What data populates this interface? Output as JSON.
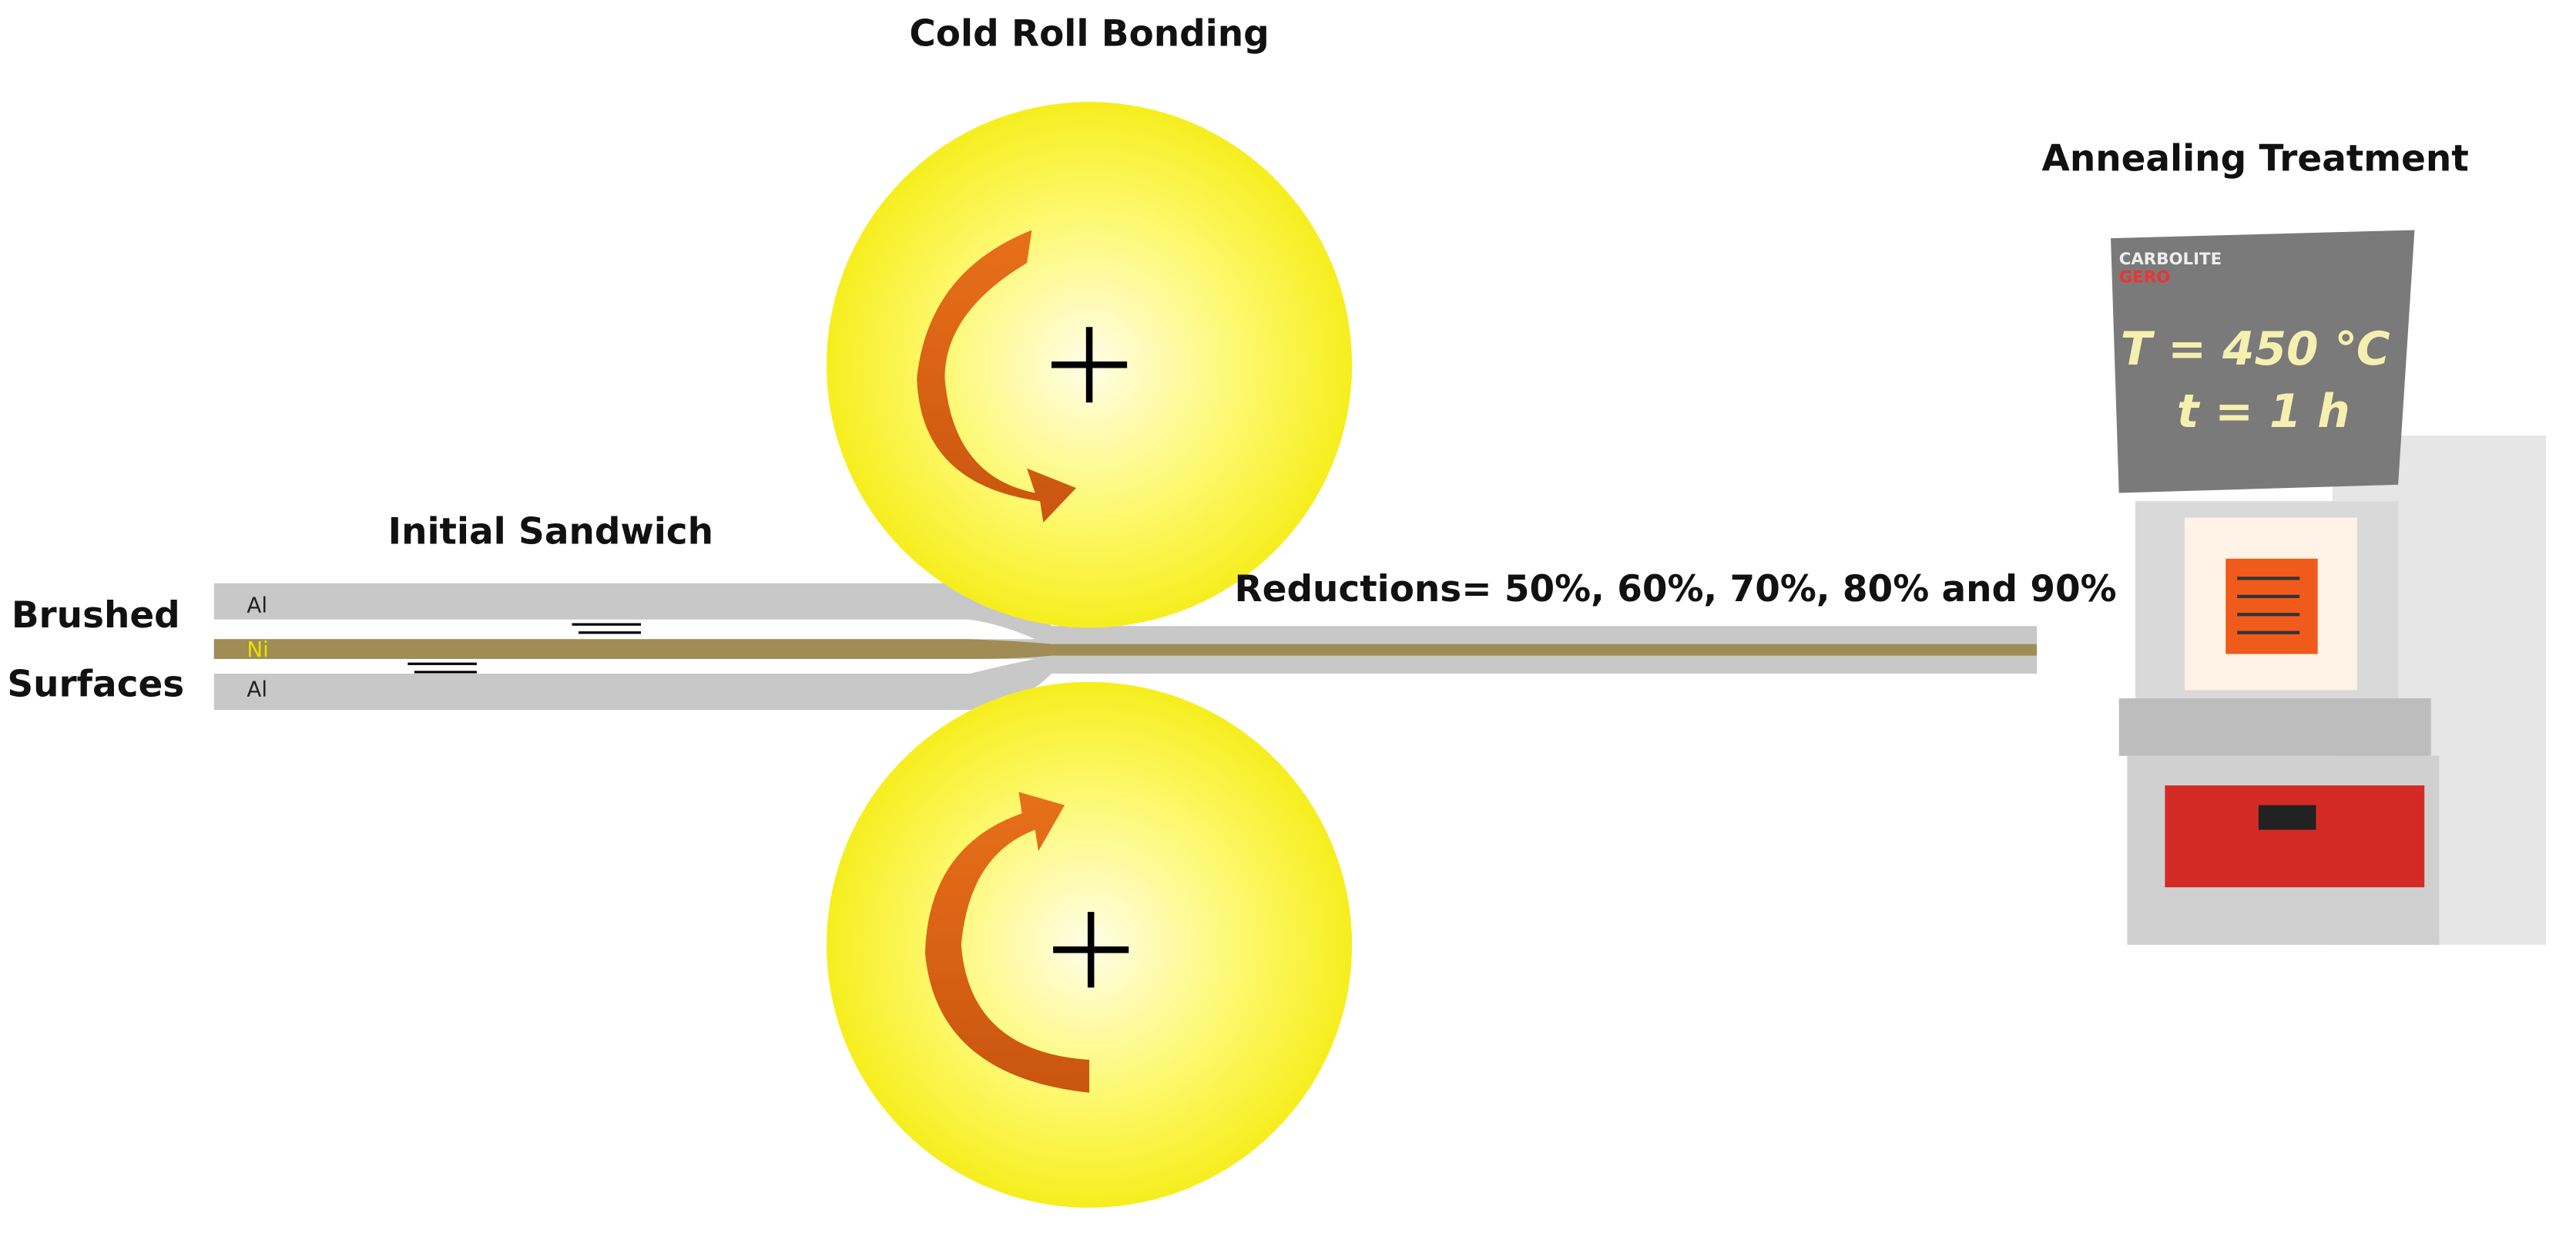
{
  "header": {
    "title": "Cold Roll Bonding"
  },
  "sandwich": {
    "title": "Initial Sandwich",
    "side_label": [
      "Brushed",
      "Surfaces"
    ],
    "layers": [
      "Al",
      "Ni",
      "Al"
    ]
  },
  "reductions": "Reductions= 50%, 60%, 70%, 80% and 90%",
  "annealing": {
    "title": "Annealing Treatment",
    "temperature": "T = 450 ℃",
    "time": "t = 1 h",
    "brand": [
      "CARBOLITE",
      "GERO"
    ]
  }
}
